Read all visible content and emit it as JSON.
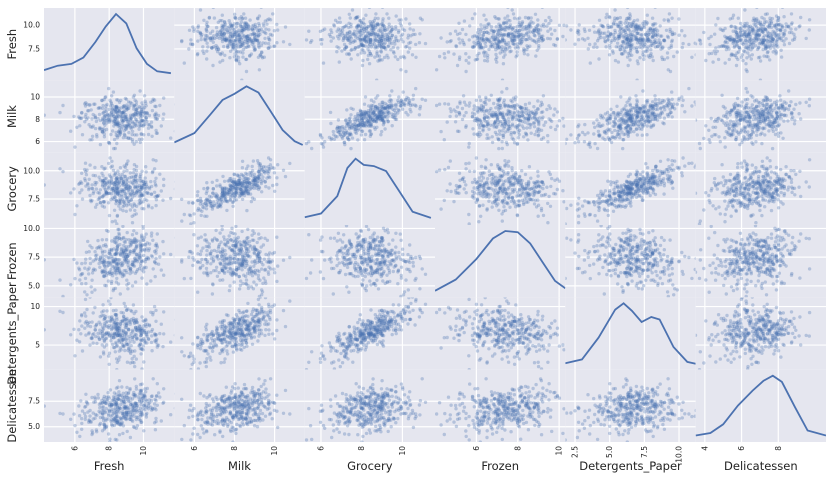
{
  "chart_data": {
    "type": "scatter",
    "title": "",
    "variables": [
      "Fresh",
      "Milk",
      "Grocery",
      "Frozen",
      "Detergents_Paper",
      "Delicatessen"
    ],
    "diagonal": "kde",
    "color": "#4c72b0",
    "background": "#e5e6ef",
    "grid": true,
    "axis_ranges": {
      "Fresh": [
        4.2,
        11.8
      ],
      "Milk": [
        5.0,
        11.5
      ],
      "Grocery": [
        5.2,
        11.6
      ],
      "Frozen": [
        4.0,
        10.3
      ],
      "Detergents_Paper": [
        1.8,
        11.2
      ],
      "Delicatessen": [
        3.5,
        10.6
      ]
    },
    "y_ticks": {
      "Fresh": [
        "7.5",
        "10.0"
      ],
      "Milk": [
        "6",
        "8",
        "10"
      ],
      "Grocery": [
        "7.5",
        "10.0"
      ],
      "Frozen": [
        "5.0",
        "7.5",
        "10.0"
      ],
      "Detergents_Paper": [
        "5",
        "10"
      ],
      "Delicatessen": [
        "5.0",
        "7.5"
      ]
    },
    "x_ticks": {
      "Fresh": [
        "6",
        "8",
        "10"
      ],
      "Milk": [
        "6",
        "8",
        "10"
      ],
      "Grocery": [
        "6",
        "8",
        "10"
      ],
      "Frozen": [
        "6",
        "8",
        "10"
      ],
      "Detergents_Paper": [
        "2.5",
        "5.0",
        "7.5",
        "10.0"
      ],
      "Delicatessen": [
        "4",
        "6",
        "8"
      ]
    },
    "kde_curves": {
      "Fresh": [
        [
          4.2,
          0.1
        ],
        [
          5.0,
          0.17
        ],
        [
          5.8,
          0.2
        ],
        [
          6.5,
          0.3
        ],
        [
          7.2,
          0.55
        ],
        [
          7.8,
          0.8
        ],
        [
          8.4,
          1.0
        ],
        [
          9.0,
          0.85
        ],
        [
          9.6,
          0.45
        ],
        [
          10.2,
          0.2
        ],
        [
          10.8,
          0.08
        ],
        [
          11.6,
          0.05
        ]
      ],
      "Milk": [
        [
          5.0,
          0.1
        ],
        [
          6.0,
          0.25
        ],
        [
          6.8,
          0.55
        ],
        [
          7.4,
          0.78
        ],
        [
          8.0,
          0.88
        ],
        [
          8.6,
          1.0
        ],
        [
          9.2,
          0.9
        ],
        [
          9.8,
          0.6
        ],
        [
          10.4,
          0.3
        ],
        [
          11.0,
          0.12
        ],
        [
          11.4,
          0.06
        ]
      ],
      "Grocery": [
        [
          5.2,
          0.06
        ],
        [
          6.0,
          0.12
        ],
        [
          6.8,
          0.4
        ],
        [
          7.3,
          0.85
        ],
        [
          7.7,
          1.0
        ],
        [
          8.1,
          0.9
        ],
        [
          8.6,
          0.88
        ],
        [
          9.2,
          0.8
        ],
        [
          9.8,
          0.5
        ],
        [
          10.5,
          0.15
        ],
        [
          11.4,
          0.05
        ]
      ],
      "Frozen": [
        [
          4.0,
          0.04
        ],
        [
          5.0,
          0.22
        ],
        [
          6.0,
          0.55
        ],
        [
          6.8,
          0.88
        ],
        [
          7.4,
          1.0
        ],
        [
          8.0,
          0.98
        ],
        [
          8.6,
          0.8
        ],
        [
          9.2,
          0.5
        ],
        [
          9.8,
          0.2
        ],
        [
          10.3,
          0.08
        ]
      ],
      "Detergents_Paper": [
        [
          1.8,
          0.04
        ],
        [
          3.0,
          0.1
        ],
        [
          4.2,
          0.45
        ],
        [
          5.4,
          0.9
        ],
        [
          6.0,
          1.0
        ],
        [
          6.6,
          0.88
        ],
        [
          7.3,
          0.7
        ],
        [
          8.0,
          0.78
        ],
        [
          8.6,
          0.74
        ],
        [
          9.6,
          0.3
        ],
        [
          10.6,
          0.06
        ],
        [
          11.2,
          0.03
        ]
      ],
      "Delicatessen": [
        [
          3.5,
          0.04
        ],
        [
          4.3,
          0.08
        ],
        [
          5.0,
          0.22
        ],
        [
          5.8,
          0.52
        ],
        [
          6.6,
          0.76
        ],
        [
          7.2,
          0.92
        ],
        [
          7.7,
          1.0
        ],
        [
          8.2,
          0.9
        ],
        [
          8.9,
          0.5
        ],
        [
          9.6,
          0.12
        ],
        [
          10.6,
          0.04
        ]
      ]
    },
    "scatter_model": {
      "means": [
        8.73,
        8.12,
        8.44,
        7.33,
        6.79,
        6.67
      ],
      "sds": [
        1.2,
        1.05,
        1.05,
        1.27,
        1.7,
        1.1
      ],
      "correlations": [
        [
          1.0,
          -0.02,
          -0.13,
          0.39,
          -0.16,
          0.26
        ],
        [
          -0.02,
          1.0,
          0.76,
          -0.06,
          0.68,
          0.34
        ],
        [
          -0.13,
          0.76,
          1.0,
          -0.16,
          0.8,
          0.24
        ],
        [
          0.39,
          -0.06,
          -0.16,
          1.0,
          -0.21,
          0.25
        ],
        [
          -0.16,
          0.68,
          0.8,
          -0.21,
          1.0,
          0.17
        ],
        [
          0.26,
          0.34,
          0.24,
          0.25,
          0.17,
          1.0
        ]
      ],
      "n_points": 400
    }
  }
}
